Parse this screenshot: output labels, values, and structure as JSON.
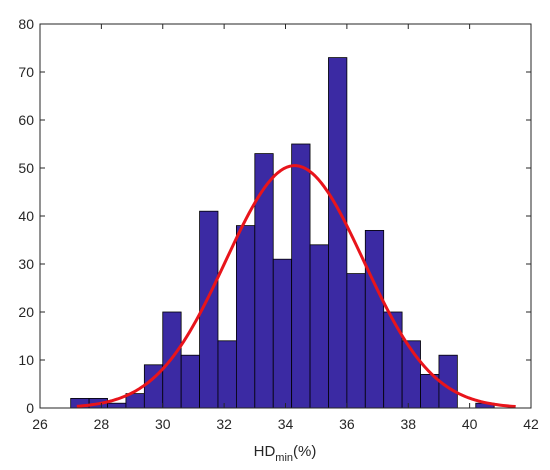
{
  "chart_data": {
    "type": "bar",
    "title": "",
    "xlabel": {
      "main": "HD",
      "sub": "min",
      "suffix": "(%)"
    },
    "ylabel": "",
    "xlim": [
      26,
      42
    ],
    "ylim": [
      0,
      80
    ],
    "xticks": [
      26,
      28,
      30,
      32,
      34,
      36,
      38,
      40,
      42
    ],
    "yticks": [
      0,
      10,
      20,
      30,
      40,
      50,
      60,
      70,
      80
    ],
    "grid": false,
    "bin_width": 0.6,
    "bins": [
      {
        "left": 27.0,
        "value": 2
      },
      {
        "left": 27.6,
        "value": 2
      },
      {
        "left": 28.2,
        "value": 1
      },
      {
        "left": 28.8,
        "value": 3
      },
      {
        "left": 29.4,
        "value": 9
      },
      {
        "left": 30.0,
        "value": 20
      },
      {
        "left": 30.6,
        "value": 11
      },
      {
        "left": 31.2,
        "value": 41
      },
      {
        "left": 31.8,
        "value": 14
      },
      {
        "left": 32.4,
        "value": 38
      },
      {
        "left": 33.0,
        "value": 53
      },
      {
        "left": 33.6,
        "value": 31
      },
      {
        "left": 34.2,
        "value": 55
      },
      {
        "left": 34.8,
        "value": 34
      },
      {
        "left": 35.4,
        "value": 73
      },
      {
        "left": 36.0,
        "value": 28
      },
      {
        "left": 36.6,
        "value": 37
      },
      {
        "left": 37.2,
        "value": 20
      },
      {
        "left": 37.8,
        "value": 14
      },
      {
        "left": 38.4,
        "value": 7
      },
      {
        "left": 39.0,
        "value": 11
      },
      {
        "left": 39.6,
        "value": 0
      },
      {
        "left": 40.2,
        "value": 1
      }
    ],
    "fit_curve": {
      "type": "normal",
      "mean": 34.3,
      "std": 2.25,
      "peak": 50.5,
      "x_range": [
        27.2,
        41.5
      ]
    },
    "colors": {
      "bar_fill": "#3b2aa3",
      "bar_edge": "#000000",
      "curve": "#e8141b",
      "axis": "#262626"
    }
  }
}
